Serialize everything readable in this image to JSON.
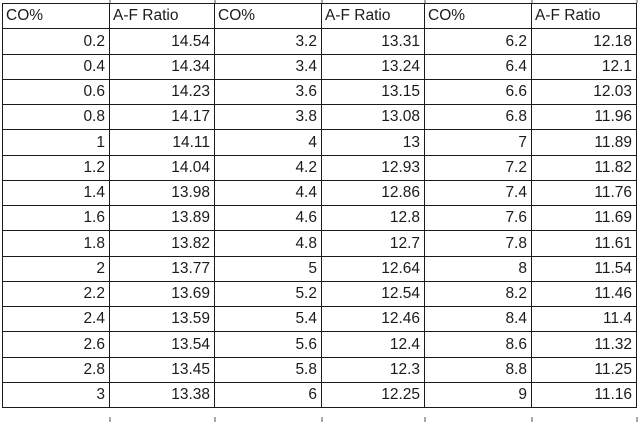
{
  "colors": {
    "background": "#ffffff",
    "border": "#1b1b1b",
    "text": "#1b1b1b",
    "gridline_stub": "#a9a9a9"
  },
  "table": {
    "headers": [
      "CO%",
      "A-F Ratio",
      "CO%",
      "A-F Ratio",
      "CO%",
      "A-F Ratio"
    ],
    "rows": [
      [
        "0.2",
        "14.54",
        "3.2",
        "13.31",
        "6.2",
        "12.18"
      ],
      [
        "0.4",
        "14.34",
        "3.4",
        "13.24",
        "6.4",
        "12.1"
      ],
      [
        "0.6",
        "14.23",
        "3.6",
        "13.15",
        "6.6",
        "12.03"
      ],
      [
        "0.8",
        "14.17",
        "3.8",
        "13.08",
        "6.8",
        "11.96"
      ],
      [
        "1",
        "14.11",
        "4",
        "13",
        "7",
        "11.89"
      ],
      [
        "1.2",
        "14.04",
        "4.2",
        "12.93",
        "7.2",
        "11.82"
      ],
      [
        "1.4",
        "13.98",
        "4.4",
        "12.86",
        "7.4",
        "11.76"
      ],
      [
        "1.6",
        "13.89",
        "4.6",
        "12.8",
        "7.6",
        "11.69"
      ],
      [
        "1.8",
        "13.82",
        "4.8",
        "12.7",
        "7.8",
        "11.61"
      ],
      [
        "2",
        "13.77",
        "5",
        "12.64",
        "8",
        "11.54"
      ],
      [
        "2.2",
        "13.69",
        "5.2",
        "12.54",
        "8.2",
        "11.46"
      ],
      [
        "2.4",
        "13.59",
        "5.4",
        "12.46",
        "8.4",
        "11.4"
      ],
      [
        "2.6",
        "13.54",
        "5.6",
        "12.4",
        "8.6",
        "11.32"
      ],
      [
        "2.8",
        "13.45",
        "5.8",
        "12.3",
        "8.8",
        "11.25"
      ],
      [
        "3",
        "13.38",
        "6",
        "12.25",
        "9",
        "11.16"
      ]
    ]
  }
}
